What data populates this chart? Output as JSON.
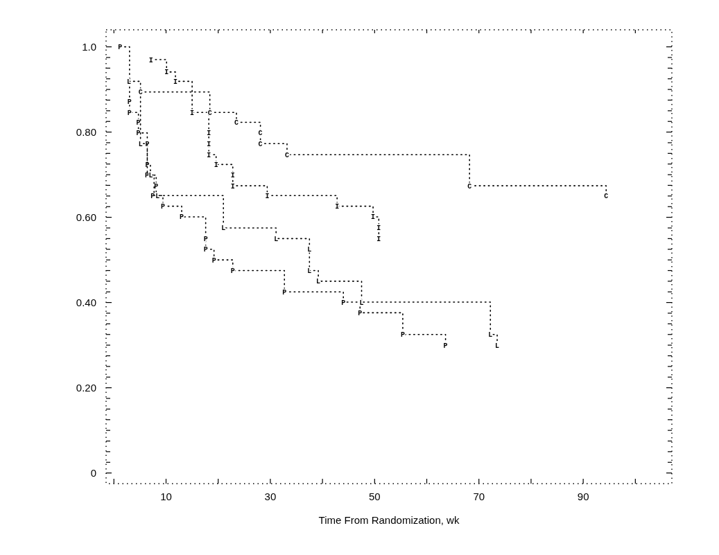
{
  "chart_data": {
    "type": "step",
    "xlabel": "Time From Randomization, wk",
    "xlim": [
      -1.5,
      107
    ],
    "ylim": [
      -0.025,
      1.04
    ],
    "xticks": [
      {
        "value": 0,
        "label": null
      },
      10,
      {
        "value": 20,
        "label": null
      },
      30,
      {
        "value": 40,
        "label": null
      },
      50,
      {
        "value": 60,
        "label": null
      },
      70,
      {
        "value": 80,
        "label": null
      },
      90,
      {
        "value": 100,
        "label": null
      }
    ],
    "yticks": [
      0,
      {
        "value": 0.025,
        "label": null
      },
      {
        "value": 0.05,
        "label": null
      },
      {
        "value": 0.075,
        "label": null
      },
      {
        "value": 0.1,
        "label": null
      },
      {
        "value": 0.125,
        "label": null
      },
      {
        "value": 0.15,
        "label": null
      },
      {
        "value": 0.175,
        "label": null
      },
      {
        "value": 0.2,
        "label": "0.20"
      },
      {
        "value": 0.225,
        "label": null
      },
      {
        "value": 0.25,
        "label": null
      },
      {
        "value": 0.275,
        "label": null
      },
      {
        "value": 0.3,
        "label": null
      },
      {
        "value": 0.325,
        "label": null
      },
      {
        "value": 0.35,
        "label": null
      },
      {
        "value": 0.375,
        "label": null
      },
      {
        "value": 0.4,
        "label": "0.40"
      },
      {
        "value": 0.425,
        "label": null
      },
      {
        "value": 0.45,
        "label": null
      },
      {
        "value": 0.475,
        "label": null
      },
      {
        "value": 0.5,
        "label": null
      },
      {
        "value": 0.525,
        "label": null
      },
      {
        "value": 0.55,
        "label": null
      },
      {
        "value": 0.575,
        "label": null
      },
      {
        "value": 0.6,
        "label": "0.60"
      },
      {
        "value": 0.625,
        "label": null
      },
      {
        "value": 0.65,
        "label": null
      },
      {
        "value": 0.675,
        "label": null
      },
      {
        "value": 0.7,
        "label": null
      },
      {
        "value": 0.725,
        "label": null
      },
      {
        "value": 0.75,
        "label": null
      },
      {
        "value": 0.775,
        "label": null
      },
      {
        "value": 0.8,
        "label": "0.80"
      },
      {
        "value": 0.825,
        "label": null
      },
      {
        "value": 0.85,
        "label": null
      },
      {
        "value": 0.875,
        "label": null
      },
      {
        "value": 0.9,
        "label": null
      },
      {
        "value": 0.925,
        "label": null
      },
      {
        "value": 0.95,
        "label": null
      },
      {
        "value": 0.975,
        "label": null
      },
      {
        "value": 1,
        "label": "1.0"
      }
    ],
    "grid": false,
    "legend": false,
    "line_style": "dotted",
    "series": [
      {
        "name": "P",
        "color": "#000000",
        "x": [
          1.2,
          3,
          3,
          4.7,
          4.7,
          6.4,
          6.4,
          7,
          8.1,
          8.1,
          9.4,
          13,
          17.6,
          17.6,
          19.2,
          22.8,
          32.7,
          44,
          47.2,
          55.4,
          63.6
        ],
        "values": [
          1.0,
          0.871,
          0.846,
          0.823,
          0.798,
          0.773,
          0.724,
          0.699,
          0.674,
          0.651,
          0.626,
          0.601,
          0.55,
          0.525,
          0.5,
          0.475,
          0.425,
          0.401,
          0.376,
          0.325,
          0.3
        ]
      },
      {
        "name": "I",
        "color": "#000000",
        "x": [
          7.1,
          10.1,
          11.8,
          15,
          18.2,
          18.2,
          18.2,
          19.6,
          22.8,
          22.8,
          29.4,
          42.8,
          49.7,
          50.8,
          50.8
        ],
        "values": [
          0.97,
          0.941,
          0.919,
          0.846,
          0.798,
          0.773,
          0.747,
          0.724,
          0.699,
          0.674,
          0.651,
          0.626,
          0.601,
          0.575,
          0.55
        ]
      },
      {
        "name": "L",
        "color": "#000000",
        "x": [
          2.9,
          5.1,
          6.4,
          7.7,
          21,
          31.1,
          37.5,
          37.5,
          39.2,
          47.5,
          72.2,
          73.5
        ],
        "values": [
          0.919,
          0.773,
          0.699,
          0.651,
          0.575,
          0.55,
          0.525,
          0.475,
          0.45,
          0.401,
          0.325,
          0.3
        ]
      },
      {
        "name": "C",
        "color": "#000000",
        "x": [
          5.1,
          18.4,
          23.5,
          28.1,
          28.1,
          33.2,
          68.2,
          94.4
        ],
        "values": [
          0.894,
          0.846,
          0.823,
          0.798,
          0.773,
          0.747,
          0.674,
          0.651
        ]
      }
    ]
  }
}
